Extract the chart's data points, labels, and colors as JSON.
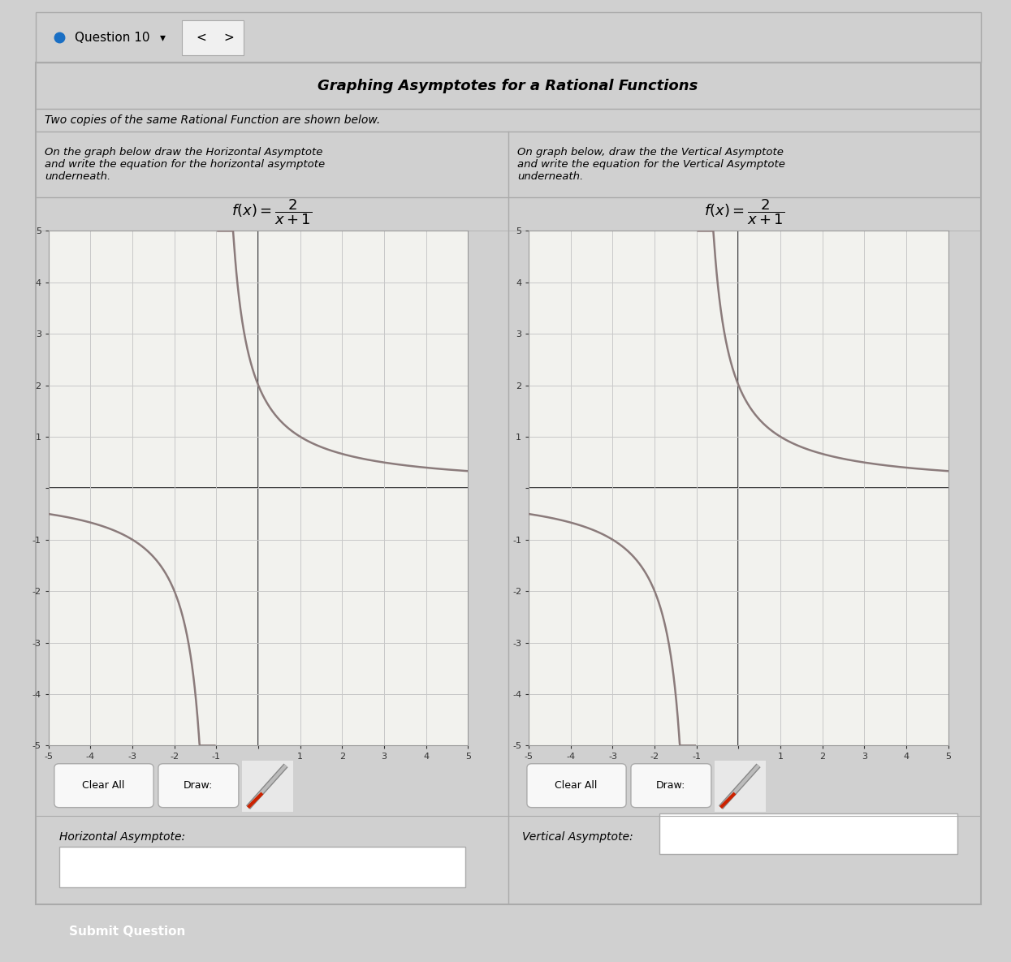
{
  "title": "Graphing Asymptotes for a Rational Functions",
  "subtitle": "Two copies of the same Rational Function are shown below.",
  "left_instruction": "On the graph below draw the Horizontal Asymptote\nand write the equation for the horizontal asymptote\nunderneath.",
  "right_instruction": "On graph below, draw the the Vertical Asymptote\nand write the equation for the Vertical Asymptote\nunderneath.",
  "left_label": "Horizontal Asymptote:",
  "right_label": "Vertical Asymptote:",
  "submit_text": "Submit Question",
  "submit_bg": "#1A6FC4",
  "submit_text_color": "#FFFFFF",
  "question_text": "Question 10",
  "curve_color": "#8B7B7B",
  "curve_linewidth": 1.8,
  "grid_color": "#C8C8C8",
  "axis_color": "#333333",
  "bg_color": "#F2F2EE",
  "tick_fontsize": 8,
  "panel_bg": "#FFFFFF",
  "outer_bg": "#D0D0D0",
  "content_bg": "#FFFFFF",
  "border_color": "#AAAAAA"
}
